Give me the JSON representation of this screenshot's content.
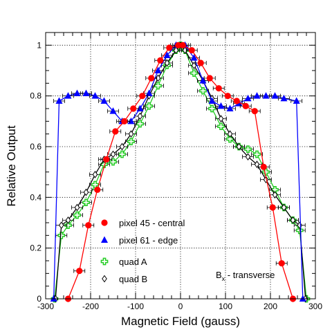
{
  "chart_data": {
    "type": "line",
    "xlabel": "Magnetic Field (gauss)",
    "ylabel": "Relative Output",
    "xlim": [
      -300,
      300
    ],
    "ylim": [
      0,
      1.05
    ],
    "x_ticks": [
      -300,
      -200,
      -100,
      0,
      100,
      200,
      300
    ],
    "y_ticks": [
      0,
      0.2,
      0.4,
      0.6,
      0.8,
      1
    ],
    "x_tick_labels": [
      "-300",
      "-200",
      "-100",
      "0",
      "100",
      "200",
      "300"
    ],
    "y_tick_labels": [
      "0",
      "0.2",
      "0.4",
      "0.6",
      "0.8",
      "1"
    ],
    "grid": true,
    "legend_position": "bottom-center",
    "annotation": {
      "main": "B",
      "sub": "x",
      "rest": " - transverse"
    },
    "series": [
      {
        "name": "pixel 45 - central",
        "marker": "filled-circle",
        "color": "#ff0000",
        "line_color": "#ff0000",
        "x": [
          -250,
          -225,
          -205,
          -185,
          -165,
          -145,
          -125,
          -105,
          -85,
          -65,
          -45,
          -25,
          -5,
          5,
          25,
          45,
          65,
          85,
          105,
          125,
          145,
          165,
          185,
          205,
          225,
          250
        ],
        "y": [
          0.0,
          0.11,
          0.29,
          0.43,
          0.55,
          0.66,
          0.7,
          0.75,
          0.8,
          0.87,
          0.94,
          0.99,
          1.0,
          1.0,
          0.98,
          0.93,
          0.87,
          0.83,
          0.8,
          0.78,
          0.76,
          0.74,
          0.52,
          0.36,
          0.14,
          0.0
        ]
      },
      {
        "name": "pixel 61 - edge",
        "marker": "filled-triangle",
        "color": "#0000ff",
        "line_color": "#0000ff",
        "x": [
          -282,
          -270,
          -250,
          -230,
          -210,
          -190,
          -170,
          -150,
          -130,
          -110,
          -90,
          -70,
          -50,
          -30,
          -10,
          10,
          30,
          50,
          70,
          90,
          110,
          130,
          150,
          170,
          190,
          210,
          230,
          258,
          272
        ],
        "y": [
          0.0,
          0.78,
          0.8,
          0.81,
          0.81,
          0.8,
          0.78,
          0.74,
          0.7,
          0.7,
          0.75,
          0.81,
          0.9,
          0.96,
          1.0,
          1.0,
          0.95,
          0.86,
          0.78,
          0.76,
          0.75,
          0.77,
          0.79,
          0.8,
          0.8,
          0.8,
          0.79,
          0.78,
          0.0
        ]
      },
      {
        "name": "quad A",
        "marker": "open-cross",
        "color": "#22cc22",
        "line_color": "#22cc22",
        "x": [
          -280,
          -265,
          -250,
          -230,
          -210,
          -190,
          -170,
          -150,
          -130,
          -110,
          -90,
          -70,
          -50,
          -30,
          -10,
          0,
          10,
          30,
          50,
          70,
          90,
          110,
          130,
          150,
          170,
          190,
          210,
          230,
          250,
          265,
          280
        ],
        "y": [
          0.0,
          0.25,
          0.29,
          0.33,
          0.38,
          0.45,
          0.53,
          0.54,
          0.57,
          0.62,
          0.69,
          0.76,
          0.84,
          0.92,
          0.98,
          1.0,
          0.98,
          0.89,
          0.82,
          0.75,
          0.68,
          0.63,
          0.6,
          0.59,
          0.57,
          0.5,
          0.43,
          0.36,
          0.31,
          0.27,
          0.0
        ]
      },
      {
        "name": "quad B",
        "marker": "open-diamond",
        "color": "#000000",
        "line_color": "#000000",
        "x": [
          -278,
          -265,
          -250,
          -230,
          -210,
          -190,
          -170,
          -150,
          -130,
          -110,
          -90,
          -70,
          -50,
          -30,
          -10,
          0,
          10,
          30,
          50,
          70,
          90,
          110,
          130,
          150,
          170,
          190,
          210,
          230,
          250,
          265,
          278
        ],
        "y": [
          0.0,
          0.29,
          0.31,
          0.36,
          0.42,
          0.49,
          0.55,
          0.57,
          0.6,
          0.65,
          0.72,
          0.8,
          0.87,
          0.93,
          0.98,
          1.0,
          0.98,
          0.92,
          0.86,
          0.79,
          0.71,
          0.65,
          0.6,
          0.56,
          0.53,
          0.47,
          0.41,
          0.36,
          0.31,
          0.29,
          0.0
        ]
      }
    ]
  }
}
